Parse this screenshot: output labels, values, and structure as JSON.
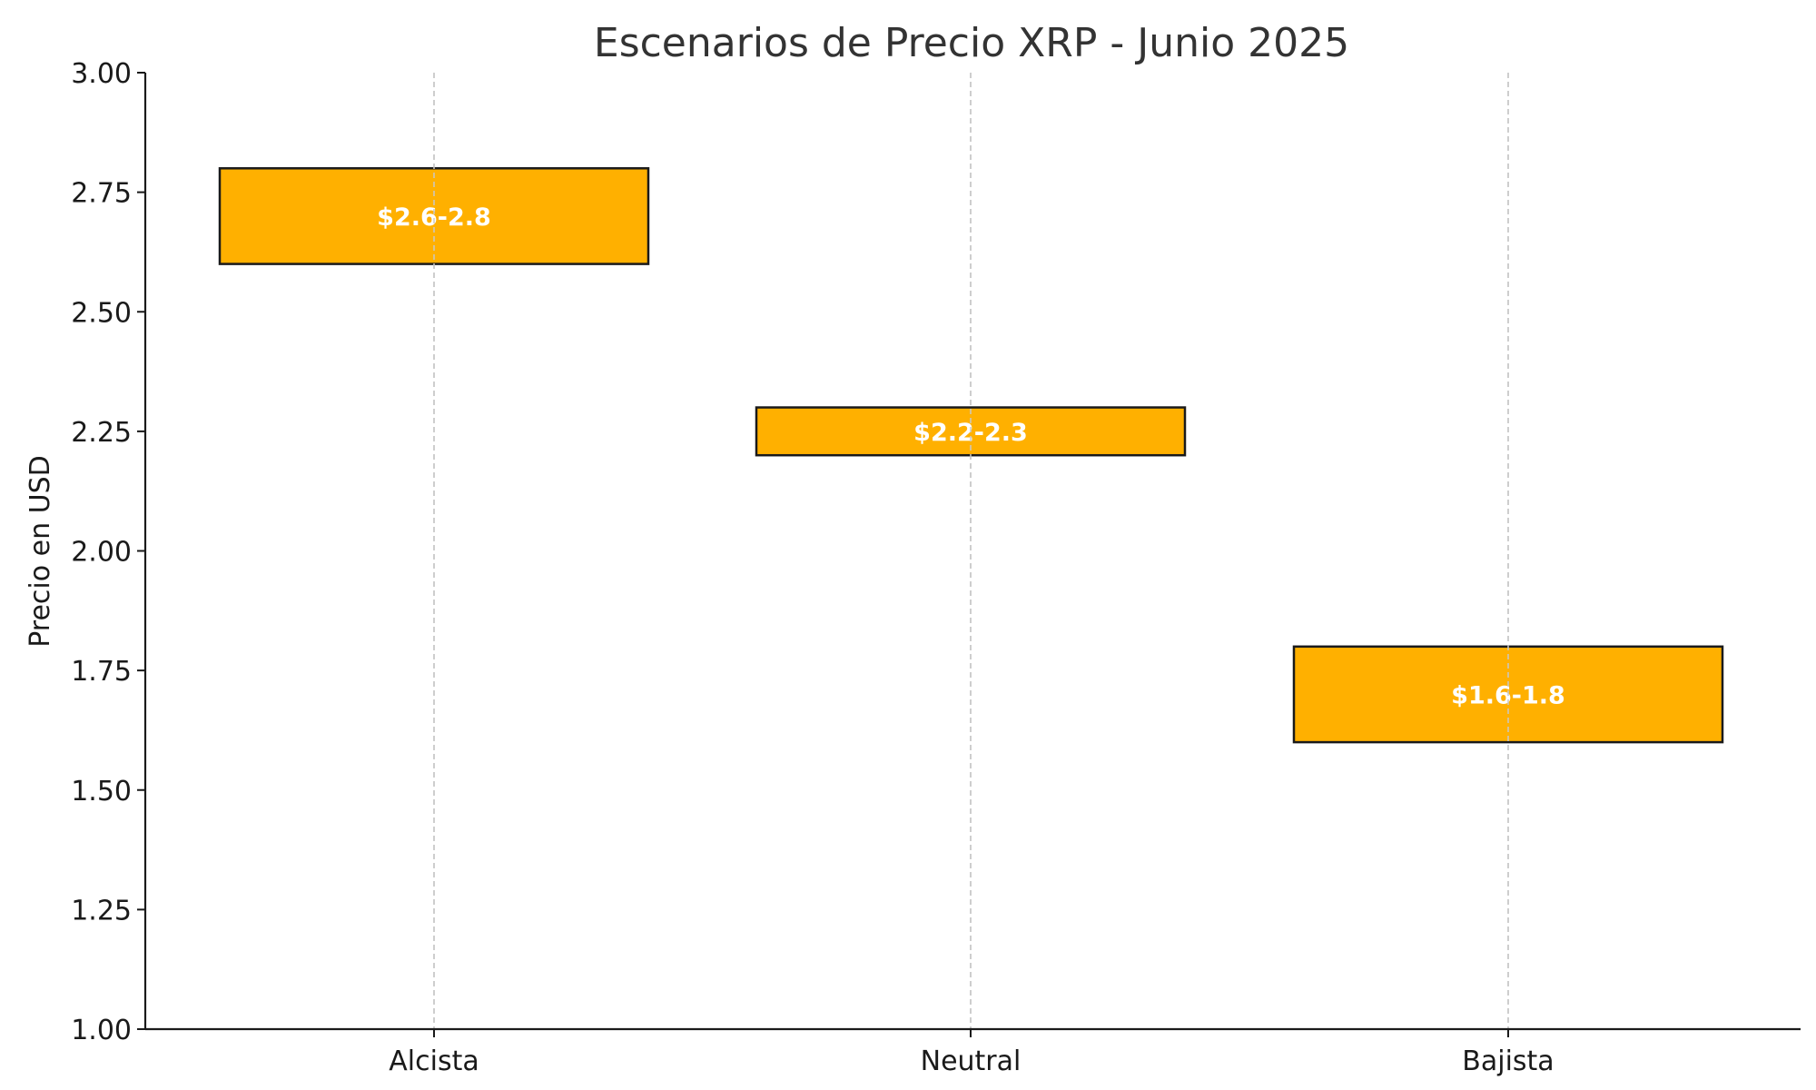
{
  "chart_data": {
    "type": "bar",
    "subtype": "floating-range",
    "title": "Escenarios de Precio XRP - Junio 2025",
    "xlabel": "",
    "ylabel": "Precio en USD",
    "categories": [
      "Alcista",
      "Neutral",
      "Bajista"
    ],
    "ranges": [
      {
        "low": 2.6,
        "high": 2.8,
        "label": "$2.6-2.8"
      },
      {
        "low": 2.2,
        "high": 2.3,
        "label": "$2.2-2.3"
      },
      {
        "low": 1.6,
        "high": 1.8,
        "label": "$1.6-1.8"
      }
    ],
    "ylim": [
      1.0,
      3.0
    ],
    "yticks": [
      1.0,
      1.25,
      1.5,
      1.75,
      2.0,
      2.25,
      2.5,
      2.75,
      3.0
    ],
    "ytick_labels": [
      "1.00",
      "1.25",
      "1.50",
      "1.75",
      "2.00",
      "2.25",
      "2.50",
      "2.75",
      "3.00"
    ],
    "grid": "x",
    "legend": "none",
    "colors": {
      "bar_fill": "#FFB000",
      "bar_edge": "#1a1a1a",
      "bar_label": "#ffffff",
      "grid": "#c8c8c8"
    }
  }
}
